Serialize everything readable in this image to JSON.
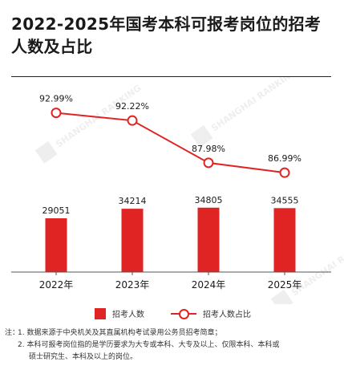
{
  "title": "2022-2025年国考本科可报考岗位的招考人数及占比",
  "colors": {
    "bar": "#e02323",
    "line": "#e02323",
    "axis": "#555555",
    "text": "#1a1a1a"
  },
  "watermark": {
    "text": "SHANGHAI RANKING"
  },
  "chart_data": {
    "type": "bar",
    "categories": [
      "2022年",
      "2023年",
      "2024年",
      "2025年"
    ],
    "series": [
      {
        "name": "招考人数",
        "type": "bar",
        "values": [
          29051,
          34214,
          34805,
          34555
        ],
        "labels": [
          "29051",
          "34214",
          "34805",
          "34555"
        ]
      },
      {
        "name": "招考人数占比",
        "type": "line",
        "values": [
          92.99,
          92.22,
          87.98,
          86.99
        ],
        "labels": [
          "92.99%",
          "92.22%",
          "87.98%",
          "86.99%"
        ],
        "unit": "%"
      }
    ],
    "xlabel": "",
    "ylabel": "",
    "legend_position": "bottom",
    "grid": false
  },
  "legend": {
    "bar_label": "招考人数",
    "line_label": "招考人数占比"
  },
  "notes": {
    "prefix": "注：",
    "items": [
      "1. 数据来源于中央机关及其直属机构考试录用公务员招考简章；",
      "2. 本科可报考岗位指的是学历要求为大专或本科、大专及以上、仅限本科、本科或",
      "硕士研究生、本科及以上的岗位。"
    ]
  }
}
